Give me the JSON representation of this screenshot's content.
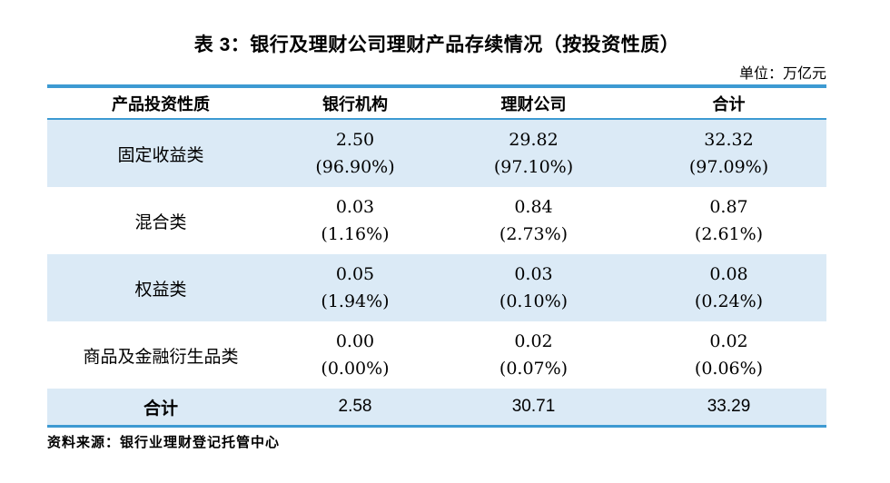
{
  "title": "表 3：银行及理财公司理财产品存续情况（按投资性质）",
  "unit_label": "单位：万亿元",
  "table": {
    "headers": [
      "产品投资性质",
      "银行机构",
      "理财公司",
      "合计"
    ],
    "rows": [
      {
        "label": "固定收益类",
        "cells": [
          {
            "amount": "2.50",
            "pct": "(96.90%)"
          },
          {
            "amount": "29.82",
            "pct": "(97.10%)"
          },
          {
            "amount": "32.32",
            "pct": "(97.09%)"
          }
        ]
      },
      {
        "label": "混合类",
        "cells": [
          {
            "amount": "0.03",
            "pct": "(1.16%)"
          },
          {
            "amount": "0.84",
            "pct": "(2.73%)"
          },
          {
            "amount": "0.87",
            "pct": "(2.61%)"
          }
        ]
      },
      {
        "label": "权益类",
        "cells": [
          {
            "amount": "0.05",
            "pct": "(1.94%)"
          },
          {
            "amount": "0.03",
            "pct": "(0.10%)"
          },
          {
            "amount": "0.08",
            "pct": "(0.24%)"
          }
        ]
      },
      {
        "label": "商品及金融衍生品类",
        "cells": [
          {
            "amount": "0.00",
            "pct": "(0.00%)"
          },
          {
            "amount": "0.02",
            "pct": "(0.07%)"
          },
          {
            "amount": "0.02",
            "pct": "(0.06%)"
          }
        ]
      }
    ],
    "total_row": {
      "label": "合计",
      "values": [
        "2.58",
        "30.71",
        "33.29"
      ]
    }
  },
  "source": "资料来源：银行业理财登记托管中心",
  "colors": {
    "accent_blue": "#3d9ad2",
    "row_highlight": "#dbeaf6"
  }
}
